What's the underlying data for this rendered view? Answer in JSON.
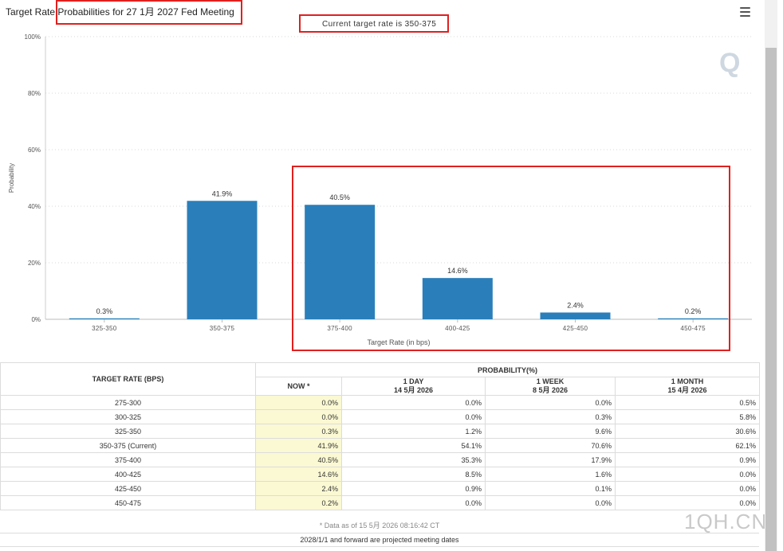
{
  "page": {
    "title": "Target Rate Probabilities for 27 1月 2027 Fed Meeting",
    "menu_icon": "hamburger-menu-icon",
    "watermark_glyph": "Q",
    "corner_logo": "1QH.CN"
  },
  "chart_data": {
    "type": "bar",
    "title": "Target Rate Probabilities for 27 1月 2027 Fed Meeting",
    "subtitle": "Current target rate is 350-375",
    "categories": [
      "325-350",
      "350-375",
      "375-400",
      "400-425",
      "425-450",
      "450-475"
    ],
    "values": [
      0.3,
      41.9,
      40.5,
      14.6,
      2.4,
      0.2
    ],
    "data_labels": [
      "0.3%",
      "41.9%",
      "40.5%",
      "14.6%",
      "2.4%",
      "0.2%"
    ],
    "xlabel": "Target Rate (in bps)",
    "ylabel": "Probability",
    "ylim": [
      0,
      100
    ],
    "yticks": [
      0,
      20,
      40,
      60,
      80,
      100
    ],
    "ytick_labels": [
      "0%",
      "20%",
      "40%",
      "60%",
      "80%",
      "100%"
    ],
    "grid": true,
    "bar_color": "#2a7fba"
  },
  "table": {
    "header_target": "TARGET RATE (BPS)",
    "header_probability": "PROBABILITY(%)",
    "columns": [
      {
        "line1": "NOW *",
        "line2": ""
      },
      {
        "line1": "1 DAY",
        "line2": "14 5月 2026"
      },
      {
        "line1": "1 WEEK",
        "line2": "8 5月 2026"
      },
      {
        "line1": "1 MONTH",
        "line2": "15 4月 2026"
      }
    ],
    "rows": [
      {
        "rate": "275-300",
        "now": "0.0%",
        "day": "0.0%",
        "week": "0.0%",
        "month": "0.5%"
      },
      {
        "rate": "300-325",
        "now": "0.0%",
        "day": "0.0%",
        "week": "0.3%",
        "month": "5.8%"
      },
      {
        "rate": "325-350",
        "now": "0.3%",
        "day": "1.2%",
        "week": "9.6%",
        "month": "30.6%"
      },
      {
        "rate": "350-375 (Current)",
        "now": "41.9%",
        "day": "54.1%",
        "week": "70.6%",
        "month": "62.1%"
      },
      {
        "rate": "375-400",
        "now": "40.5%",
        "day": "35.3%",
        "week": "17.9%",
        "month": "0.9%"
      },
      {
        "rate": "400-425",
        "now": "14.6%",
        "day": "8.5%",
        "week": "1.6%",
        "month": "0.0%"
      },
      {
        "rate": "425-450",
        "now": "2.4%",
        "day": "0.9%",
        "week": "0.1%",
        "month": "0.0%"
      },
      {
        "rate": "450-475",
        "now": "0.2%",
        "day": "0.0%",
        "week": "0.0%",
        "month": "0.0%"
      }
    ],
    "footnote": "* Data as of 15 5月 2026 08:16:42 CT",
    "note": "2028/1/1 and forward are projected meeting dates"
  }
}
